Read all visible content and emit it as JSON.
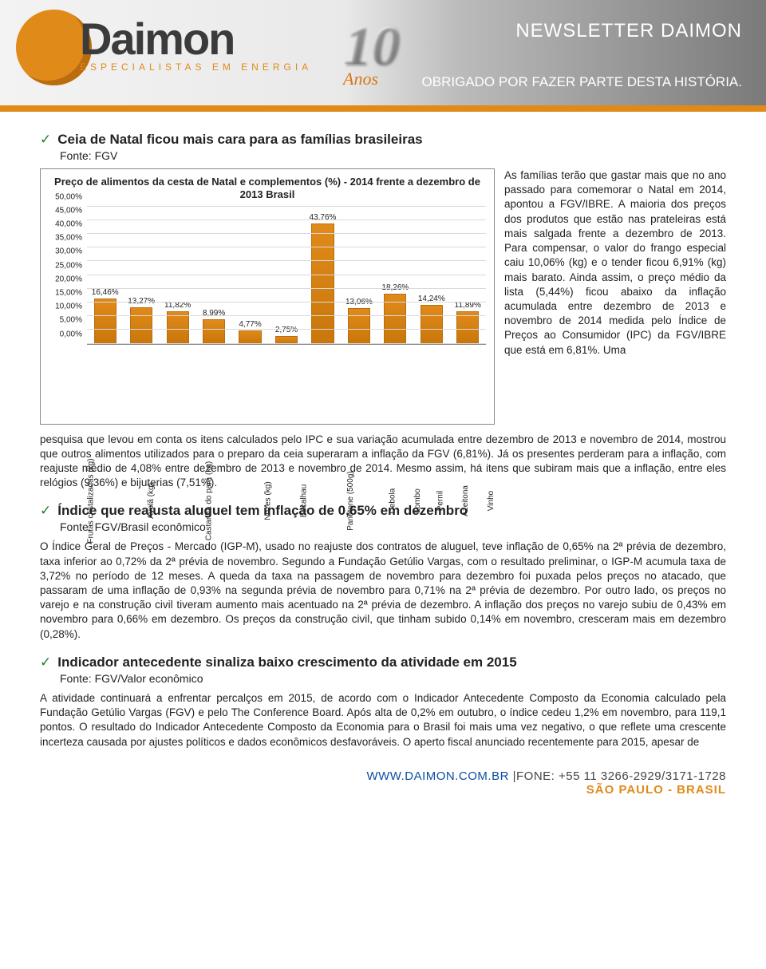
{
  "header": {
    "brand": "Daimon",
    "tagline": "ESPECIALISTAS EM ENERGIA",
    "anniversary_number": "10",
    "anniversary_label": "Anos",
    "newsletter_title": "NEWSLETTER DAIMON",
    "newsletter_sub": "OBRIGADO POR FAZER PARTE DESTA HISTÓRIA."
  },
  "art1": {
    "headline": "Ceia de Natal ficou mais cara para as famílias brasileiras",
    "source": "Fonte: FGV",
    "side_text": "As famílias terão que gastar mais que no ano passado para comemorar o Natal em 2014, apontou a FGV/IBRE. A maioria dos preços dos produtos que estão nas prateleiras está mais salgada frente a dezembro de 2013. Para compensar, o valor do frango especial caiu 10,06% (kg) e o tender ficou 6,91% (kg) mais barato. Ainda assim, o preço médio da lista (5,44%) ficou abaixo da inflação acumulada entre dezembro de 2013 e novembro de 2014 medida pelo Índice de Preços ao Consumidor (IPC) da FGV/IBRE que está em 6,81%. Uma",
    "cont_text": "pesquisa que levou em conta os itens calculados pelo IPC e sua variação acumulada entre dezembro de 2013 e novembro de 2014, mostrou que outros alimentos utilizados para o preparo da ceia superaram a inflação da FGV (6,81%). Já os presentes perderam para a inflação, com reajuste médio de 4,08% entre dezembro de 2013 e novembro de 2014. Mesmo assim, há itens que subiram mais que a inflação, entre eles relógios (9,36%) e bijuterias (7,51%)."
  },
  "chart": {
    "title": "Preço de alimentos da cesta de Natal e complementos (%) - 2014 frente a dezembro de 2013 Brasil",
    "ymax": 50,
    "yticks": [
      "50,00%",
      "45,00%",
      "40,00%",
      "35,00%",
      "30,00%",
      "25,00%",
      "20,00%",
      "15,00%",
      "10,00%",
      "5,00%",
      "0,00%"
    ],
    "bar_color": "#e08a1a",
    "bar_border": "#b96d0e",
    "grid_color": "#d9d9d9",
    "series": [
      {
        "cat": "Frutas cristalizadas (kg)",
        "val": 16.46,
        "label": "16,46%"
      },
      {
        "cat": "Avelã (kg)",
        "val": 13.27,
        "label": "13,27%"
      },
      {
        "cat": "Castanha do pará (kg)",
        "val": 11.82,
        "label": "11,82%"
      },
      {
        "cat": "Nozes (kg)",
        "val": 8.99,
        "label": "8,99%"
      },
      {
        "cat": "Bacalhau",
        "val": 4.77,
        "label": "4,77%"
      },
      {
        "cat": "Panetone (500g)",
        "val": 2.75,
        "label": "2,75%"
      },
      {
        "cat": "Cebola",
        "val": 43.76,
        "label": "43,76%"
      },
      {
        "cat": "Lombo",
        "val": 13.06,
        "label": "13,06%"
      },
      {
        "cat": "Pernil",
        "val": 18.26,
        "label": "18,26%"
      },
      {
        "cat": "Azeitona",
        "val": 14.24,
        "label": "14,24%"
      },
      {
        "cat": "Vinho",
        "val": 11.89,
        "label": "11,89%"
      }
    ]
  },
  "art2": {
    "headline": "Índice que reajusta aluguel tem inflação de 0,65% em dezembro",
    "source": "Fonte: FGV/Brasil econômico",
    "body": "O Índice Geral de Preços - Mercado (IGP-M), usado no reajuste dos contratos de aluguel, teve inflação de 0,65% na 2ª prévia de dezembro, taxa inferior ao 0,72% da 2ª prévia de novembro. Segundo a Fundação Getúlio Vargas, com o resultado preliminar, o IGP-M acumula taxa de 3,72% no período de 12 meses. A queda da taxa na passagem de novembro para dezembro foi puxada pelos preços no atacado, que passaram de uma inflação de 0,93% na segunda prévia de novembro para 0,71% na 2ª prévia de dezembro. Por outro lado, os preços no varejo e na construção civil tiveram aumento mais acentuado na 2ª prévia de dezembro. A inflação dos preços no varejo subiu de 0,43% em novembro para 0,66% em dezembro. Os preços da construção civil, que tinham subido 0,14% em novembro, cresceram mais em dezembro (0,28%)."
  },
  "art3": {
    "headline": "Indicador antecedente sinaliza baixo crescimento da atividade em 2015",
    "source": "Fonte: FGV/Valor econômico",
    "body": "A atividade continuará a enfrentar percalços em 2015, de acordo com o Indicador Antecedente Composto da Economia calculado pela Fundação Getúlio Vargas (FGV) e pelo The Conference Board. Após alta de 0,2% em outubro, o índice cedeu 1,2% em novembro, para 119,1 pontos. O resultado do Indicador Antecedente Composto da Economia para o Brasil foi mais uma vez negativo, o que reflete uma crescente incerteza causada por ajustes políticos e dados econômicos desfavoráveis. O aperto fiscal anunciado recentemente para 2015, apesar de"
  },
  "footer": {
    "url": "WWW.DAIMON.COM.BR",
    "phone_label": " |FONE: +55 11 3266-2929/3171-1728",
    "city": "SÃO PAULO - BRASIL"
  }
}
